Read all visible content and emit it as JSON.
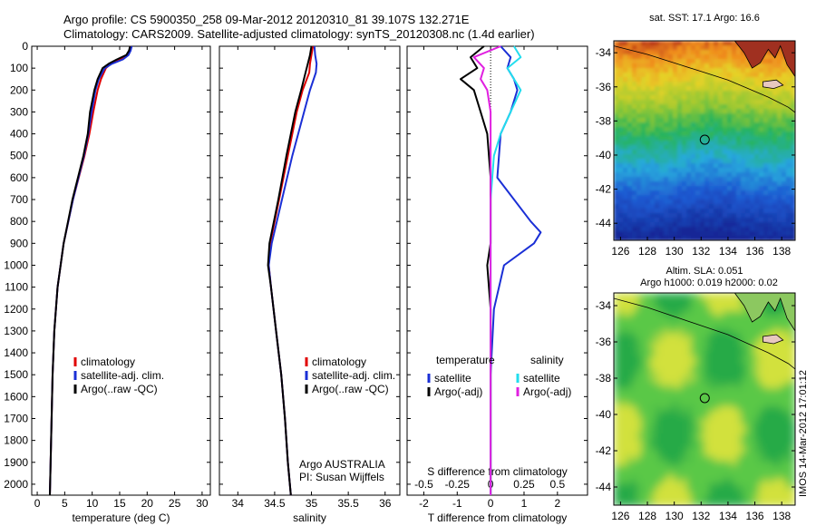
{
  "title": {
    "line1": "Argo profile: CS 5900350_258 09-Mar-2012 20120310_81 39.107S 132.271E",
    "line2": "Climatology: CARS2009. Satellite-adjusted climatology: synTS_20120308.nc (1.4d earlier)"
  },
  "colors": {
    "climatology": "#e00000",
    "satellite": "#1a2fd6",
    "argo": "#000000",
    "satellite_cyan": "#22ddee",
    "argo_magenta": "#e020e0"
  },
  "chart_data": [
    {
      "type": "line",
      "id": "temperature",
      "xlabel": "temperature (deg C)",
      "ylabel": "",
      "xlim": [
        -1,
        31.5
      ],
      "ylim": [
        2050,
        0
      ],
      "xticks": [
        "0",
        "5",
        "10",
        "15",
        "20",
        "25",
        "30"
      ],
      "yticks": [
        "0",
        "100",
        "200",
        "300",
        "400",
        "500",
        "600",
        "700",
        "800",
        "900",
        "1000",
        "1100",
        "1200",
        "1300",
        "1400",
        "1500",
        "1600",
        "1700",
        "1800",
        "1900",
        "2000"
      ],
      "legend": [
        "climatology",
        "satellite-adj. clim.",
        "Argo(..raw -QC)"
      ],
      "series": [
        {
          "name": "climatology",
          "color": "#e00000",
          "depth": [
            0,
            20,
            40,
            60,
            80,
            100,
            150,
            200,
            300,
            400,
            500,
            700,
            900,
            1100,
            1300,
            1500,
            2050
          ],
          "values": [
            17,
            16.8,
            16.3,
            15.2,
            13.4,
            12.5,
            11.6,
            11.0,
            10.2,
            9.5,
            8.6,
            6.5,
            4.8,
            3.7,
            3.1,
            2.8,
            2.3
          ]
        },
        {
          "name": "satellite-adj. clim.",
          "color": "#1a2fd6",
          "depth": [
            0,
            20,
            40,
            60,
            80,
            100,
            150,
            200,
            300,
            400,
            500,
            700,
            900,
            1100,
            1300,
            1500,
            2050
          ],
          "values": [
            17.2,
            17.0,
            16.6,
            15.6,
            13.6,
            12.3,
            11.2,
            10.6,
            9.9,
            9.3,
            8.5,
            6.5,
            4.8,
            3.7,
            3.1,
            2.8,
            2.3
          ]
        },
        {
          "name": "Argo(..raw -QC)",
          "color": "#000000",
          "depth": [
            0,
            20,
            40,
            60,
            80,
            100,
            150,
            200,
            300,
            400,
            500,
            700,
            900,
            1100,
            1300,
            1500,
            2050
          ],
          "values": [
            16.9,
            16.7,
            16.2,
            14.5,
            13.0,
            11.9,
            11.0,
            10.4,
            9.6,
            9.2,
            8.4,
            6.4,
            4.8,
            3.7,
            3.1,
            2.8,
            2.3
          ]
        }
      ]
    },
    {
      "type": "line",
      "id": "salinity",
      "xlabel": "salinity",
      "ylabel": "",
      "xlim": [
        33.75,
        36.2
      ],
      "ylim": [
        2050,
        0
      ],
      "xticks": [
        "34",
        "34.5",
        "35",
        "35.5",
        "36"
      ],
      "legend": [
        "climatology",
        "satellite-adj. clim.",
        "Argo(..raw -QC)"
      ],
      "annotation": [
        "Argo AUSTRALIA",
        "PI: Susan Wijffels"
      ],
      "series": [
        {
          "name": "climatology",
          "color": "#e00000",
          "depth": [
            0,
            40,
            80,
            120,
            200,
            300,
            500,
            700,
            900,
            1000,
            1100,
            1300,
            1500,
            1700,
            1900,
            2050
          ],
          "values": [
            35.02,
            35.0,
            34.98,
            34.97,
            34.88,
            34.8,
            34.68,
            34.56,
            34.44,
            34.42,
            34.45,
            34.52,
            34.59,
            34.64,
            34.68,
            34.72
          ]
        },
        {
          "name": "satellite-adj. clim.",
          "color": "#1a2fd6",
          "depth": [
            0,
            40,
            80,
            120,
            200,
            300,
            500,
            700,
            900,
            1000,
            1100,
            1300,
            1500,
            1700,
            1900,
            2050
          ],
          "values": [
            35.04,
            35.05,
            35.07,
            35.06,
            34.98,
            34.9,
            34.74,
            34.6,
            34.46,
            34.42,
            34.45,
            34.52,
            34.59,
            34.64,
            34.68,
            34.72
          ]
        },
        {
          "name": "Argo(..raw -QC)",
          "color": "#000000",
          "depth": [
            0,
            40,
            80,
            120,
            200,
            300,
            500,
            700,
            900,
            1000,
            1100,
            1300,
            1500,
            1700,
            1900,
            2050
          ],
          "values": [
            35.0,
            34.98,
            34.95,
            34.92,
            34.86,
            34.78,
            34.66,
            34.55,
            34.43,
            34.41,
            34.45,
            34.52,
            34.59,
            34.64,
            34.68,
            34.72
          ]
        }
      ]
    },
    {
      "type": "line",
      "id": "difference",
      "xlabel": "T difference from climatology",
      "xlabel_top": "S difference from climatology",
      "xlim": [
        -2.5,
        2.9
      ],
      "ylim": [
        2050,
        0
      ],
      "xticks": [
        "-2",
        "-1",
        "0",
        "1",
        "2"
      ],
      "xticks_s": [
        "-0.5",
        "-0.25",
        "0",
        "0.25",
        "0.5"
      ],
      "legend_headers": [
        "temperature",
        "salinity"
      ],
      "legend": [
        "satellite",
        "Argo(-adj)",
        "satellite",
        "Argo(-adj)"
      ],
      "series": [
        {
          "name": "satellite",
          "color": "#1a2fd6",
          "depth": [
            0,
            50,
            100,
            150,
            200,
            300,
            400,
            600,
            800,
            850,
            900,
            1000,
            1200,
            1500,
            2050
          ],
          "values": [
            0.3,
            0.6,
            0.5,
            0.7,
            0.8,
            0.6,
            0.3,
            0.2,
            1.2,
            1.5,
            1.3,
            0.4,
            0.1,
            0.0,
            0.0
          ]
        },
        {
          "name": "Argo(-adj)",
          "color": "#000000",
          "depth": [
            0,
            50,
            100,
            150,
            200,
            300,
            400,
            600,
            800,
            900,
            1000,
            1200,
            1500,
            2050
          ],
          "values": [
            -0.2,
            -0.6,
            -0.4,
            -0.9,
            -0.5,
            -0.3,
            -0.1,
            0.0,
            0.0,
            0.0,
            -0.1,
            0.0,
            0.0,
            0.0
          ]
        },
        {
          "name": "satellite",
          "color": "#22ddee",
          "depth": [
            0,
            50,
            100,
            150,
            200,
            300,
            400,
            500,
            700,
            1000,
            1500,
            2050
          ],
          "values": [
            0.7,
            0.9,
            0.5,
            0.7,
            0.9,
            0.6,
            0.3,
            0.1,
            0.0,
            0.0,
            0.0,
            0.0
          ]
        },
        {
          "name": "Argo(-adj)",
          "color": "#e020e0",
          "depth": [
            0,
            50,
            100,
            150,
            200,
            300,
            400,
            500,
            700,
            1000,
            1500,
            2050
          ],
          "values": [
            0.3,
            -0.5,
            -0.2,
            -0.3,
            -0.1,
            0.0,
            0.0,
            0.0,
            0.0,
            0.0,
            0.0,
            0.0
          ]
        }
      ]
    },
    {
      "type": "heatmap",
      "id": "sst-map",
      "title": "sat. SST: 17.1  Argo: 16.6",
      "xlim": [
        125.5,
        139
      ],
      "ylim": [
        -45,
        -33.3
      ],
      "xticks": [
        "126",
        "128",
        "130",
        "132",
        "134",
        "136",
        "138"
      ],
      "yticks": [
        "-34",
        "-36",
        "-38",
        "-40",
        "-42",
        "-44"
      ],
      "marker": [
        132.27,
        -39.1
      ]
    },
    {
      "type": "heatmap",
      "id": "sla-map",
      "title": "Altim. SLA: 0.051",
      "subtitle": "Argo h1000: 0.019  h2000: 0.02",
      "xlim": [
        125.5,
        139
      ],
      "ylim": [
        -45,
        -33.3
      ],
      "xticks": [
        "126",
        "128",
        "130",
        "132",
        "134",
        "136",
        "138"
      ],
      "yticks": [
        "-34",
        "-36",
        "-38",
        "-40",
        "-42",
        "-44"
      ],
      "marker": [
        132.27,
        -39.1
      ]
    }
  ],
  "stamp": "IMOS 14-Mar-2012 17:01:12"
}
